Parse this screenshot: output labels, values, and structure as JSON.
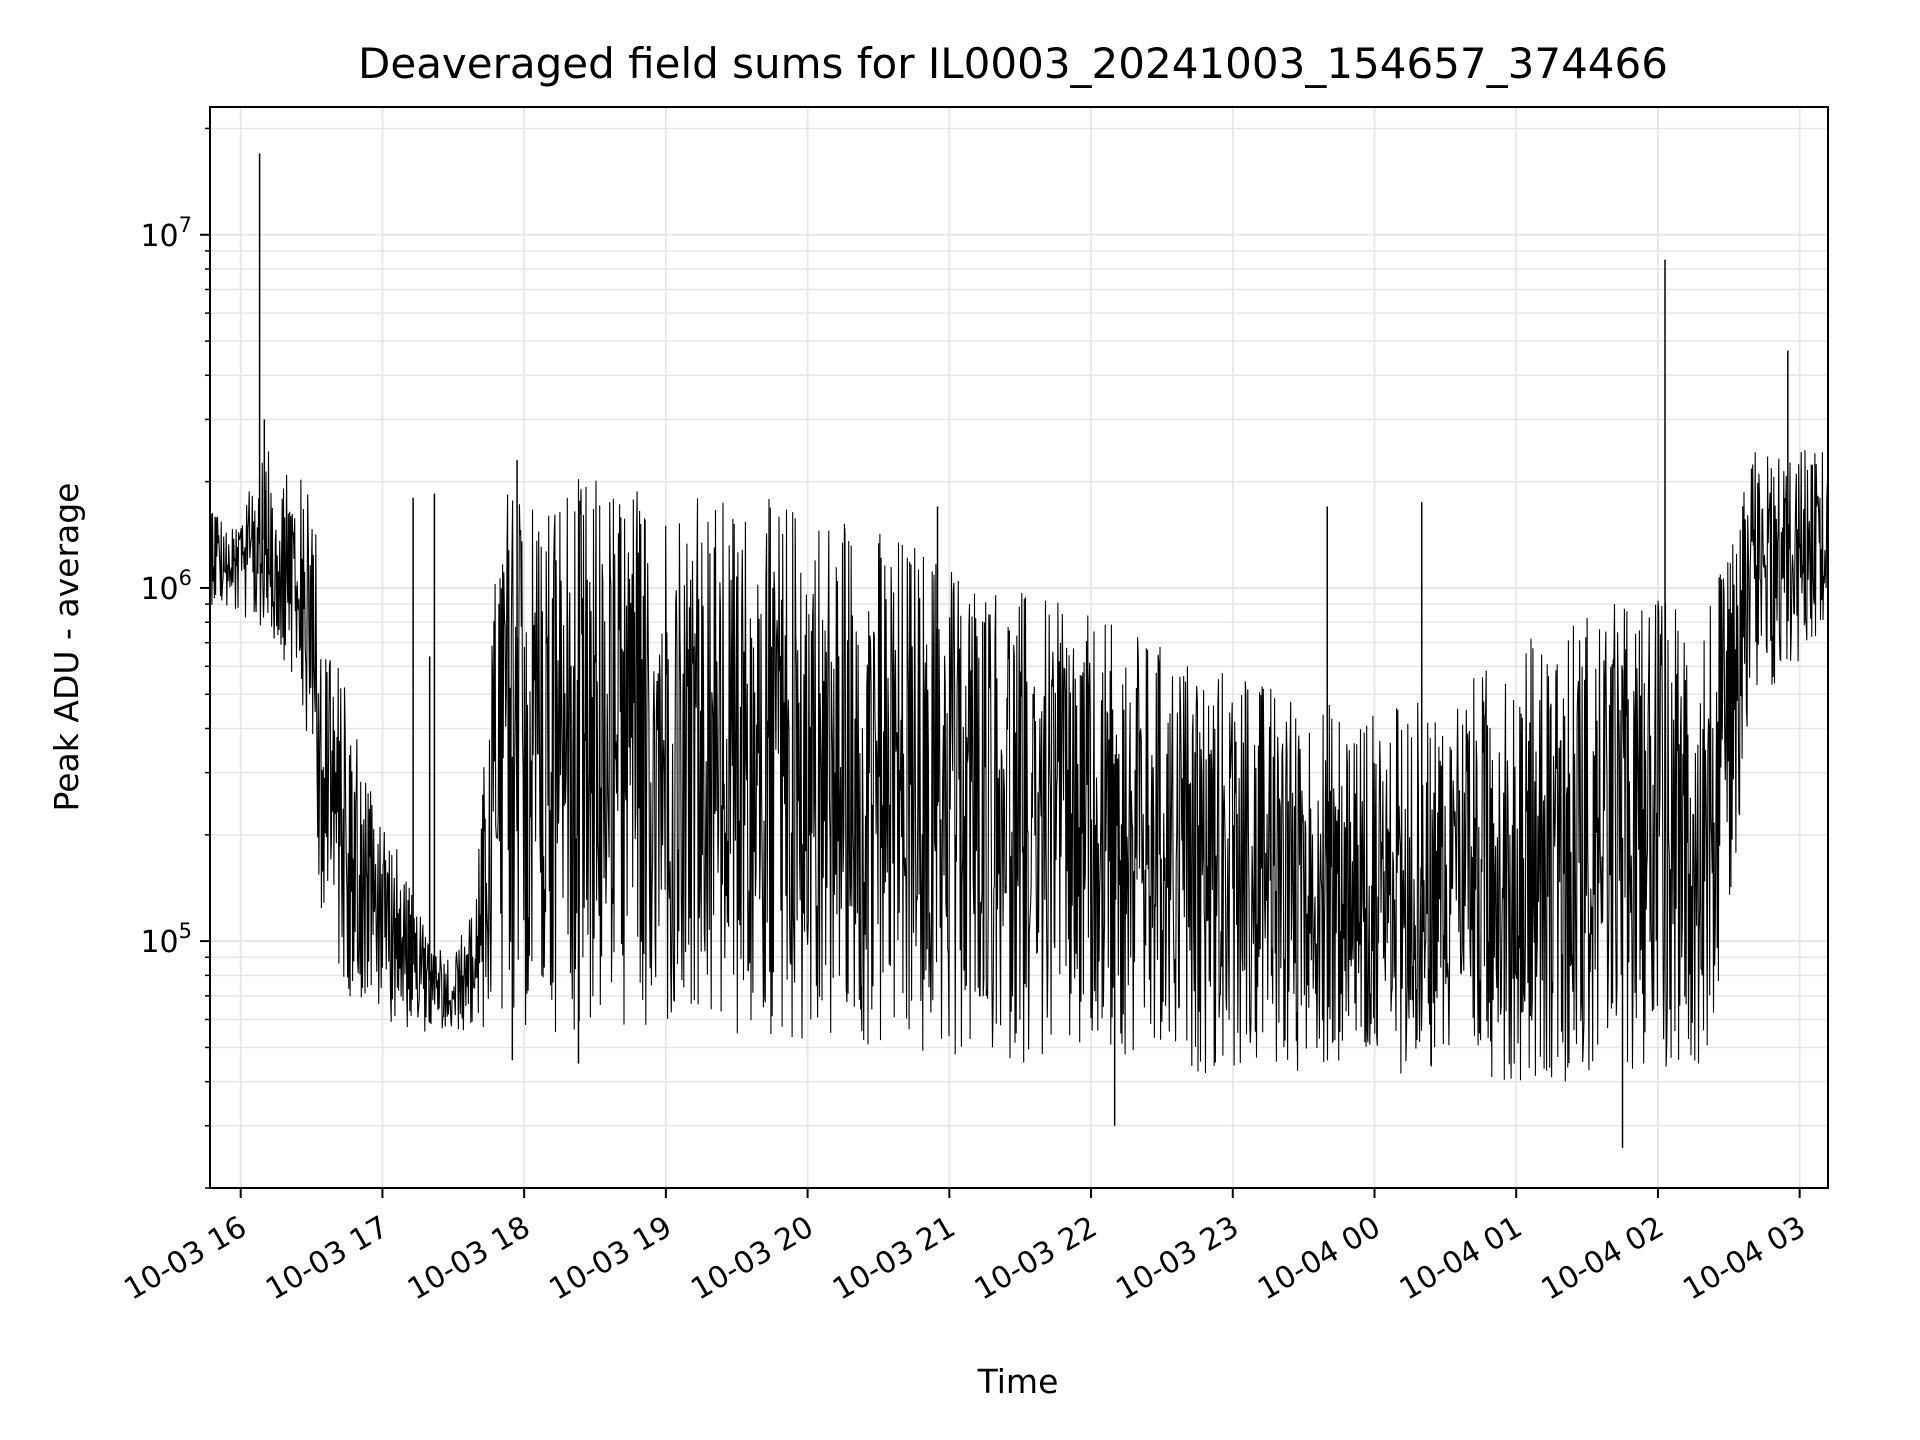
{
  "chart_data": {
    "type": "line",
    "title": "Deaveraged field sums for IL0003_20241003_154657_374466",
    "xlabel": "Time",
    "ylabel": "Peak ADU - average",
    "yscale": "log",
    "grid": true,
    "line_color": "#000000",
    "grid_color": "#e6e6e6",
    "x_ticks": [
      "10-03 16",
      "10-03 17",
      "10-03 18",
      "10-03 19",
      "10-03 20",
      "10-03 21",
      "10-03 22",
      "10-03 23",
      "10-04 00",
      "10-04 01",
      "10-04 02",
      "10-04 03"
    ],
    "y_ticks": [
      {
        "mantissa": "10",
        "exponent": "5",
        "value": 100000
      },
      {
        "mantissa": "10",
        "exponent": "6",
        "value": 1000000
      },
      {
        "mantissa": "10",
        "exponent": "7",
        "value": 10000000
      }
    ],
    "xlim": [
      "2024-10-03 15:47",
      "2024-10-04 03:12"
    ],
    "ylim": [
      20000,
      23000000
    ],
    "series": [
      {
        "envelope": [
          {
            "t": "2024-10-03 15:47",
            "lo": 900000,
            "hi": 2000000
          },
          {
            "t": "2024-10-03 15:55",
            "lo": 850000,
            "hi": 1400000
          },
          {
            "t": "2024-10-03 16:10",
            "lo": 750000,
            "hi": 2500000
          },
          {
            "t": "2024-10-03 16:20",
            "lo": 600000,
            "hi": 2200000
          },
          {
            "t": "2024-10-03 16:30",
            "lo": 300000,
            "hi": 2000000
          },
          {
            "t": "2024-10-03 16:35",
            "lo": 100000,
            "hi": 1000000
          },
          {
            "t": "2024-10-03 16:45",
            "lo": 70000,
            "hi": 500000
          },
          {
            "t": "2024-10-03 17:00",
            "lo": 60000,
            "hi": 250000
          },
          {
            "t": "2024-10-03 17:15",
            "lo": 55000,
            "hi": 120000
          },
          {
            "t": "2024-10-03 17:30",
            "lo": 55000,
            "hi": 90000
          },
          {
            "t": "2024-10-03 17:40",
            "lo": 55000,
            "hi": 150000
          },
          {
            "t": "2024-10-03 17:50",
            "lo": 55000,
            "hi": 2000000
          },
          {
            "t": "2024-10-03 18:30",
            "lo": 55000,
            "hi": 2100000
          },
          {
            "t": "2024-10-03 19:30",
            "lo": 50000,
            "hi": 1800000
          },
          {
            "t": "2024-10-03 20:00",
            "lo": 50000,
            "hi": 1800000
          },
          {
            "t": "2024-10-03 20:45",
            "lo": 45000,
            "hi": 1400000
          },
          {
            "t": "2024-10-03 21:30",
            "lo": 45000,
            "hi": 1000000
          },
          {
            "t": "2024-10-03 22:30",
            "lo": 42000,
            "hi": 700000
          },
          {
            "t": "2024-10-03 23:30",
            "lo": 42000,
            "hi": 500000
          },
          {
            "t": "2024-10-04 00:00",
            "lo": 42000,
            "hi": 450000
          },
          {
            "t": "2024-10-04 00:30",
            "lo": 42000,
            "hi": 500000
          },
          {
            "t": "2024-10-04 01:00",
            "lo": 40000,
            "hi": 700000
          },
          {
            "t": "2024-10-04 01:30",
            "lo": 40000,
            "hi": 900000
          },
          {
            "t": "2024-10-04 02:20",
            "lo": 45000,
            "hi": 1000000
          },
          {
            "t": "2024-10-04 02:30",
            "lo": 100000,
            "hi": 1200000
          },
          {
            "t": "2024-10-04 02:40",
            "lo": 400000,
            "hi": 2500000
          },
          {
            "t": "2024-10-04 03:12",
            "lo": 800000,
            "hi": 2500000
          }
        ],
        "spikes": [
          {
            "t": "2024-10-03 16:08",
            "y": 17000000
          },
          {
            "t": "2024-10-03 16:10",
            "y": 3000000
          },
          {
            "t": "2024-10-03 17:20",
            "y": 640000
          },
          {
            "t": "2024-10-03 17:13",
            "y": 1800000
          },
          {
            "t": "2024-10-03 17:22",
            "y": 1850000
          },
          {
            "t": "2024-10-03 17:57",
            "y": 2300000
          },
          {
            "t": "2024-10-03 20:55",
            "y": 1700000
          },
          {
            "t": "2024-10-03 23:40",
            "y": 1700000
          },
          {
            "t": "2024-10-04 00:20",
            "y": 1750000
          },
          {
            "t": "2024-10-04 02:03",
            "y": 8500000
          },
          {
            "t": "2024-10-04 02:55",
            "y": 4700000
          },
          {
            "t": "2024-10-03 17:55",
            "y": 46000
          },
          {
            "t": "2024-10-03 18:23",
            "y": 45000
          },
          {
            "t": "2024-10-03 22:10",
            "y": 30000
          },
          {
            "t": "2024-10-04 01:45",
            "y": 26000
          }
        ]
      }
    ]
  }
}
